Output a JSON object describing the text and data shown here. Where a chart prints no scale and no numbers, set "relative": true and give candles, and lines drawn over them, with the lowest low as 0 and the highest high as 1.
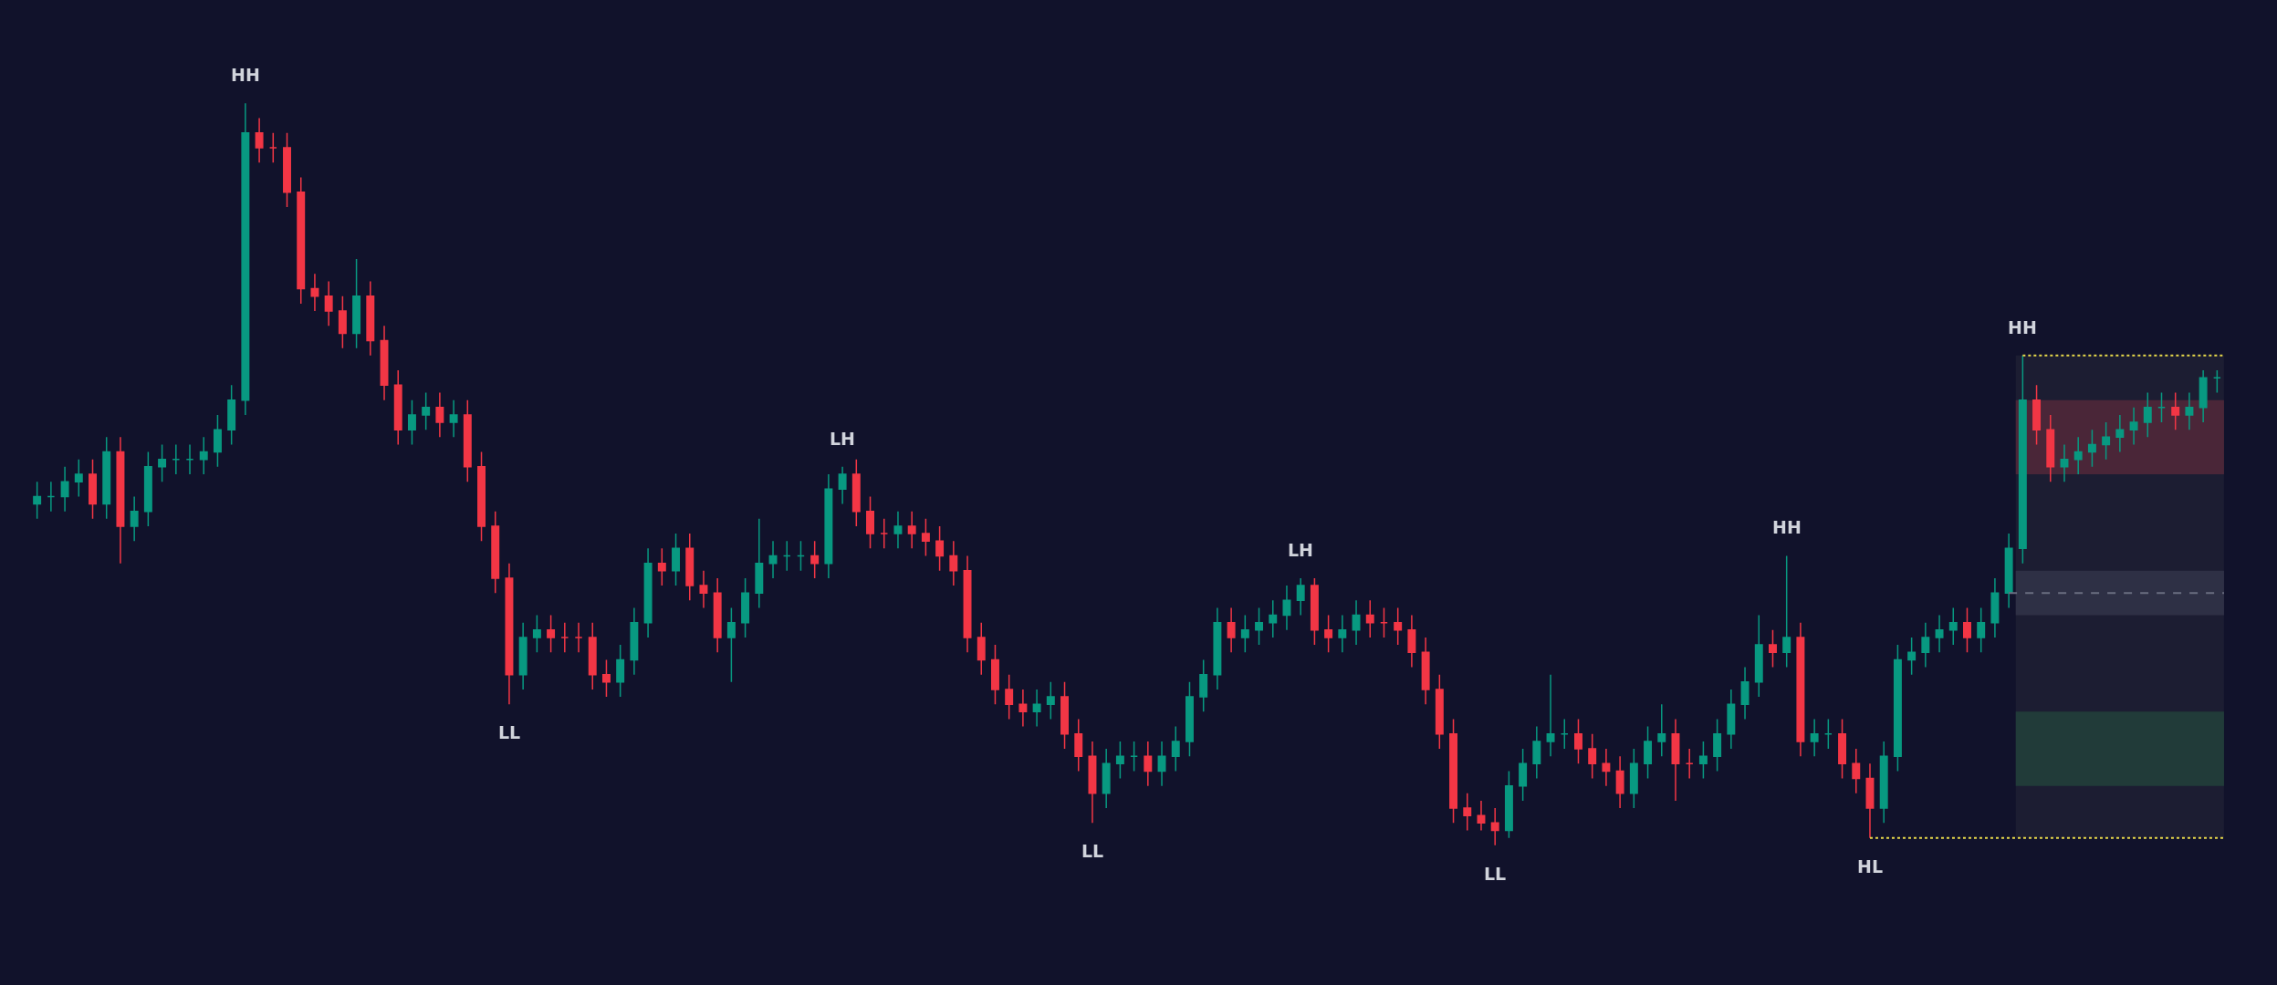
{
  "chart_data": {
    "type": "candlestick",
    "relative": true,
    "categories": [
      null,
      null,
      null,
      null,
      null,
      null,
      null,
      null,
      null,
      null,
      null,
      null,
      null,
      null,
      null,
      null,
      null,
      null,
      null,
      null,
      null,
      null,
      null,
      null,
      null,
      null,
      null,
      null,
      null,
      null,
      null,
      null,
      null,
      null,
      null,
      null,
      null,
      null,
      null,
      null,
      null,
      null,
      null,
      null,
      null,
      null,
      null,
      null,
      null,
      null,
      null,
      null,
      null,
      null,
      null,
      null,
      null,
      null,
      null,
      null,
      null,
      null,
      null,
      null,
      null,
      null,
      null,
      null,
      null,
      null,
      null,
      null,
      null,
      null,
      null,
      null,
      null,
      null,
      null,
      null,
      null,
      null,
      null,
      null,
      null,
      null,
      null,
      null,
      null,
      null,
      null,
      null,
      null,
      null,
      null,
      null,
      null,
      null,
      null,
      null,
      null,
      null,
      null,
      null,
      null,
      null,
      null,
      null,
      null,
      null,
      null,
      null,
      null,
      null,
      null,
      null,
      null,
      null,
      null,
      null,
      null,
      null,
      null,
      null,
      null,
      null,
      null,
      null,
      null,
      null,
      null,
      null,
      null,
      null,
      null,
      null,
      null,
      null,
      null,
      null,
      null,
      null,
      null,
      null,
      null,
      null,
      null,
      null,
      null,
      null,
      null,
      null,
      null,
      null,
      null,
      null,
      null,
      null
    ],
    "ohlc": [
      [
        0.46,
        0.49,
        0.44,
        0.47
      ],
      [
        0.47,
        0.49,
        0.45,
        0.47
      ],
      [
        0.47,
        0.51,
        0.45,
        0.49
      ],
      [
        0.49,
        0.52,
        0.47,
        0.5
      ],
      [
        0.5,
        0.52,
        0.44,
        0.46
      ],
      [
        0.46,
        0.55,
        0.44,
        0.53
      ],
      [
        0.53,
        0.55,
        0.38,
        0.43
      ],
      [
        0.43,
        0.47,
        0.41,
        0.45
      ],
      [
        0.45,
        0.53,
        0.43,
        0.51
      ],
      [
        0.51,
        0.54,
        0.49,
        0.52
      ],
      [
        0.52,
        0.54,
        0.5,
        0.52
      ],
      [
        0.52,
        0.54,
        0.5,
        0.52
      ],
      [
        0.52,
        0.55,
        0.5,
        0.53
      ],
      [
        0.53,
        0.58,
        0.51,
        0.56
      ],
      [
        0.56,
        0.62,
        0.54,
        0.6
      ],
      [
        0.6,
        1,
        0.58,
        0.96
      ],
      [
        0.96,
        0.98,
        0.92,
        0.94
      ],
      [
        0.94,
        0.96,
        0.92,
        0.94
      ],
      [
        0.94,
        0.96,
        0.86,
        0.88
      ],
      [
        0.88,
        0.9,
        0.73,
        0.75
      ],
      [
        0.75,
        0.77,
        0.72,
        0.74
      ],
      [
        0.74,
        0.76,
        0.7,
        0.72
      ],
      [
        0.72,
        0.74,
        0.67,
        0.69
      ],
      [
        0.69,
        0.79,
        0.67,
        0.74
      ],
      [
        0.74,
        0.76,
        0.66,
        0.68
      ],
      [
        0.68,
        0.7,
        0.6,
        0.62
      ],
      [
        0.62,
        0.64,
        0.54,
        0.56
      ],
      [
        0.56,
        0.6,
        0.54,
        0.58
      ],
      [
        0.58,
        0.61,
        0.56,
        0.59
      ],
      [
        0.59,
        0.61,
        0.55,
        0.57
      ],
      [
        0.57,
        0.6,
        0.55,
        0.58
      ],
      [
        0.58,
        0.6,
        0.49,
        0.51
      ],
      [
        0.51,
        0.53,
        0.41,
        0.43
      ],
      [
        0.43,
        0.45,
        0.34,
        0.36
      ],
      [
        0.36,
        0.38,
        0.19,
        0.23
      ],
      [
        0.23,
        0.3,
        0.21,
        0.28
      ],
      [
        0.28,
        0.31,
        0.26,
        0.29
      ],
      [
        0.29,
        0.31,
        0.26,
        0.28
      ],
      [
        0.28,
        0.3,
        0.26,
        0.28
      ],
      [
        0.28,
        0.3,
        0.26,
        0.28
      ],
      [
        0.28,
        0.3,
        0.21,
        0.23
      ],
      [
        0.23,
        0.25,
        0.2,
        0.22
      ],
      [
        0.22,
        0.27,
        0.2,
        0.25
      ],
      [
        0.25,
        0.32,
        0.23,
        0.3
      ],
      [
        0.3,
        0.4,
        0.28,
        0.38
      ],
      [
        0.38,
        0.4,
        0.35,
        0.37
      ],
      [
        0.37,
        0.42,
        0.35,
        0.4
      ],
      [
        0.4,
        0.42,
        0.33,
        0.35
      ],
      [
        0.35,
        0.37,
        0.32,
        0.34
      ],
      [
        0.34,
        0.36,
        0.26,
        0.28
      ],
      [
        0.28,
        0.32,
        0.22,
        0.3
      ],
      [
        0.3,
        0.36,
        0.28,
        0.34
      ],
      [
        0.34,
        0.44,
        0.32,
        0.38
      ],
      [
        0.38,
        0.41,
        0.36,
        0.39
      ],
      [
        0.39,
        0.41,
        0.37,
        0.39
      ],
      [
        0.39,
        0.41,
        0.37,
        0.39
      ],
      [
        0.39,
        0.41,
        0.36,
        0.38
      ],
      [
        0.38,
        0.5,
        0.36,
        0.48
      ],
      [
        0.48,
        0.51,
        0.46,
        0.5
      ],
      [
        0.5,
        0.52,
        0.43,
        0.45
      ],
      [
        0.45,
        0.47,
        0.4,
        0.42
      ],
      [
        0.42,
        0.44,
        0.4,
        0.42
      ],
      [
        0.42,
        0.45,
        0.4,
        0.43
      ],
      [
        0.43,
        0.45,
        0.4,
        0.42
      ],
      [
        0.42,
        0.44,
        0.39,
        0.41
      ],
      [
        0.41,
        0.43,
        0.37,
        0.39
      ],
      [
        0.39,
        0.41,
        0.35,
        0.37
      ],
      [
        0.37,
        0.39,
        0.26,
        0.28
      ],
      [
        0.28,
        0.3,
        0.23,
        0.25
      ],
      [
        0.25,
        0.27,
        0.19,
        0.21
      ],
      [
        0.21,
        0.23,
        0.17,
        0.19
      ],
      [
        0.19,
        0.21,
        0.16,
        0.18
      ],
      [
        0.18,
        0.21,
        0.16,
        0.19
      ],
      [
        0.19,
        0.22,
        0.17,
        0.2
      ],
      [
        0.2,
        0.22,
        0.13,
        0.15
      ],
      [
        0.15,
        0.17,
        0.1,
        0.12
      ],
      [
        0.12,
        0.14,
        0.03,
        0.07
      ],
      [
        0.07,
        0.13,
        0.05,
        0.11
      ],
      [
        0.11,
        0.14,
        0.09,
        0.12
      ],
      [
        0.12,
        0.14,
        0.1,
        0.12
      ],
      [
        0.12,
        0.14,
        0.08,
        0.1
      ],
      [
        0.1,
        0.14,
        0.08,
        0.12
      ],
      [
        0.12,
        0.16,
        0.1,
        0.14
      ],
      [
        0.14,
        0.22,
        0.12,
        0.2
      ],
      [
        0.2,
        0.25,
        0.18,
        0.23
      ],
      [
        0.23,
        0.32,
        0.21,
        0.3
      ],
      [
        0.3,
        0.32,
        0.26,
        0.28
      ],
      [
        0.28,
        0.31,
        0.26,
        0.29
      ],
      [
        0.29,
        0.32,
        0.27,
        0.3
      ],
      [
        0.3,
        0.33,
        0.28,
        0.31
      ],
      [
        0.31,
        0.35,
        0.29,
        0.33
      ],
      [
        0.33,
        0.36,
        0.31,
        0.35
      ],
      [
        0.35,
        0.36,
        0.27,
        0.29
      ],
      [
        0.29,
        0.31,
        0.26,
        0.28
      ],
      [
        0.28,
        0.31,
        0.26,
        0.29
      ],
      [
        0.29,
        0.33,
        0.27,
        0.31
      ],
      [
        0.31,
        0.33,
        0.28,
        0.3
      ],
      [
        0.3,
        0.32,
        0.28,
        0.3
      ],
      [
        0.3,
        0.32,
        0.27,
        0.29
      ],
      [
        0.29,
        0.31,
        0.24,
        0.26
      ],
      [
        0.26,
        0.28,
        0.19,
        0.21
      ],
      [
        0.21,
        0.23,
        0.13,
        0.15
      ],
      [
        0.15,
        0.17,
        0.03,
        0.05
      ],
      [
        0.05,
        0.07,
        0.02,
        0.04
      ],
      [
        0.04,
        0.06,
        0.02,
        0.03
      ],
      [
        0.03,
        0.05,
        0,
        0.02
      ],
      [
        0.02,
        0.1,
        0.01,
        0.08
      ],
      [
        0.08,
        0.13,
        0.06,
        0.11
      ],
      [
        0.11,
        0.16,
        0.09,
        0.14
      ],
      [
        0.14,
        0.23,
        0.12,
        0.15
      ],
      [
        0.15,
        0.17,
        0.13,
        0.15
      ],
      [
        0.15,
        0.17,
        0.11,
        0.13
      ],
      [
        0.13,
        0.15,
        0.09,
        0.11
      ],
      [
        0.11,
        0.13,
        0.08,
        0.1
      ],
      [
        0.1,
        0.12,
        0.05,
        0.07
      ],
      [
        0.07,
        0.13,
        0.05,
        0.11
      ],
      [
        0.11,
        0.16,
        0.09,
        0.14
      ],
      [
        0.14,
        0.19,
        0.12,
        0.15
      ],
      [
        0.15,
        0.17,
        0.06,
        0.11
      ],
      [
        0.11,
        0.13,
        0.09,
        0.11
      ],
      [
        0.11,
        0.14,
        0.09,
        0.12
      ],
      [
        0.12,
        0.17,
        0.1,
        0.15
      ],
      [
        0.15,
        0.21,
        0.13,
        0.19
      ],
      [
        0.19,
        0.24,
        0.17,
        0.22
      ],
      [
        0.22,
        0.31,
        0.2,
        0.27
      ],
      [
        0.27,
        0.29,
        0.24,
        0.26
      ],
      [
        0.26,
        0.39,
        0.24,
        0.28
      ],
      [
        0.28,
        0.3,
        0.12,
        0.14
      ],
      [
        0.14,
        0.17,
        0.12,
        0.15
      ],
      [
        0.15,
        0.17,
        0.13,
        0.15
      ],
      [
        0.15,
        0.17,
        0.09,
        0.11
      ],
      [
        0.11,
        0.13,
        0.07,
        0.09
      ],
      [
        0.09,
        0.11,
        0.01,
        0.05
      ],
      [
        0.05,
        0.14,
        0.03,
        0.12
      ],
      [
        0.12,
        0.27,
        0.1,
        0.25
      ],
      [
        0.25,
        0.28,
        0.23,
        0.26
      ],
      [
        0.26,
        0.3,
        0.24,
        0.28
      ],
      [
        0.28,
        0.31,
        0.26,
        0.29
      ],
      [
        0.29,
        0.32,
        0.27,
        0.3
      ],
      [
        0.3,
        0.32,
        0.26,
        0.28
      ],
      [
        0.28,
        0.32,
        0.26,
        0.3
      ],
      [
        0.3,
        0.36,
        0.28,
        0.34
      ],
      [
        0.34,
        0.42,
        0.32,
        0.4
      ],
      [
        0.4,
        0.66,
        0.38,
        0.6
      ],
      [
        0.6,
        0.62,
        0.54,
        0.56
      ],
      [
        0.56,
        0.58,
        0.49,
        0.51
      ],
      [
        0.51,
        0.54,
        0.49,
        0.52
      ],
      [
        0.52,
        0.55,
        0.5,
        0.53
      ],
      [
        0.53,
        0.56,
        0.51,
        0.54
      ],
      [
        0.54,
        0.57,
        0.52,
        0.55
      ],
      [
        0.55,
        0.58,
        0.53,
        0.56
      ],
      [
        0.56,
        0.59,
        0.54,
        0.57
      ],
      [
        0.57,
        0.61,
        0.55,
        0.59
      ],
      [
        0.59,
        0.61,
        0.57,
        0.59
      ],
      [
        0.59,
        0.61,
        0.56,
        0.58
      ],
      [
        0.58,
        0.61,
        0.56,
        0.59
      ],
      [
        0.59,
        0.64,
        0.57,
        0.63
      ],
      [
        0.63,
        0.64,
        0.61,
        0.63
      ]
    ],
    "annotations": [
      {
        "text": "HH",
        "y": 1
      },
      {
        "text": "LL",
        "y": 0.19
      },
      {
        "text": "LH",
        "y": 0.51
      },
      {
        "text": "LL",
        "y": 0.03
      },
      {
        "text": "LH",
        "y": 0.36
      },
      {
        "text": "LL",
        "y": 0
      },
      {
        "text": "HH",
        "y": 0.39
      },
      {
        "text": "HL",
        "y": 0.01
      },
      {
        "text": "HH",
        "y": 0.66
      }
    ],
    "bands": [
      {
        "axis": "y",
        "from": 0.01,
        "to": 0.66,
        "color": "#1c1d32"
      },
      {
        "axis": "y",
        "from": 0.5,
        "to": 0.6,
        "color": "#4a2638"
      },
      {
        "axis": "y",
        "from": 0.31,
        "to": 0.37,
        "color": "#2e3045"
      },
      {
        "axis": "y",
        "from": 0.08,
        "to": 0.18,
        "color": "#213b39"
      }
    ],
    "ref_lines": [
      {
        "axis": "y",
        "value": 0.66,
        "color": "#e6d84a",
        "line_style": "dotted"
      },
      {
        "axis": "y",
        "value": 0.01,
        "color": "#e6d84a",
        "line_style": "dotted"
      },
      {
        "axis": "y",
        "value": 0.34,
        "color": "#6a6d80",
        "line_style": "dashed"
      }
    ]
  }
}
